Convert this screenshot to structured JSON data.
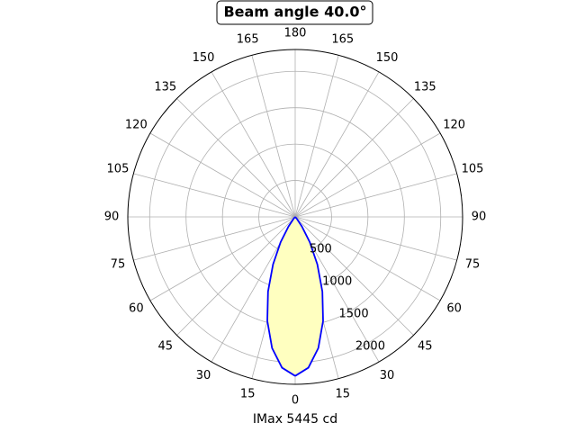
{
  "chart_data": {
    "type": "polar",
    "title": "Beam angle 40.0°",
    "xlabel": "IMax 5445 cd",
    "x": [
      0,
      5,
      10,
      15,
      20,
      25,
      30,
      35,
      40,
      45,
      60,
      75,
      90
    ],
    "series": [
      {
        "color": "#0000ff",
        "fill": "#ffffc0",
        "values": [
          2185,
          2080,
          1830,
          1480,
          1092,
          720,
          400,
          160,
          40,
          0,
          0,
          0,
          0
        ]
      }
    ],
    "ylim": [
      0,
      2300
    ],
    "yticks": [
      500,
      1000,
      1500,
      2000
    ],
    "xticks": [
      0,
      15,
      30,
      45,
      60,
      75,
      90,
      105,
      120,
      135,
      150,
      165,
      180
    ],
    "grid": true
  }
}
